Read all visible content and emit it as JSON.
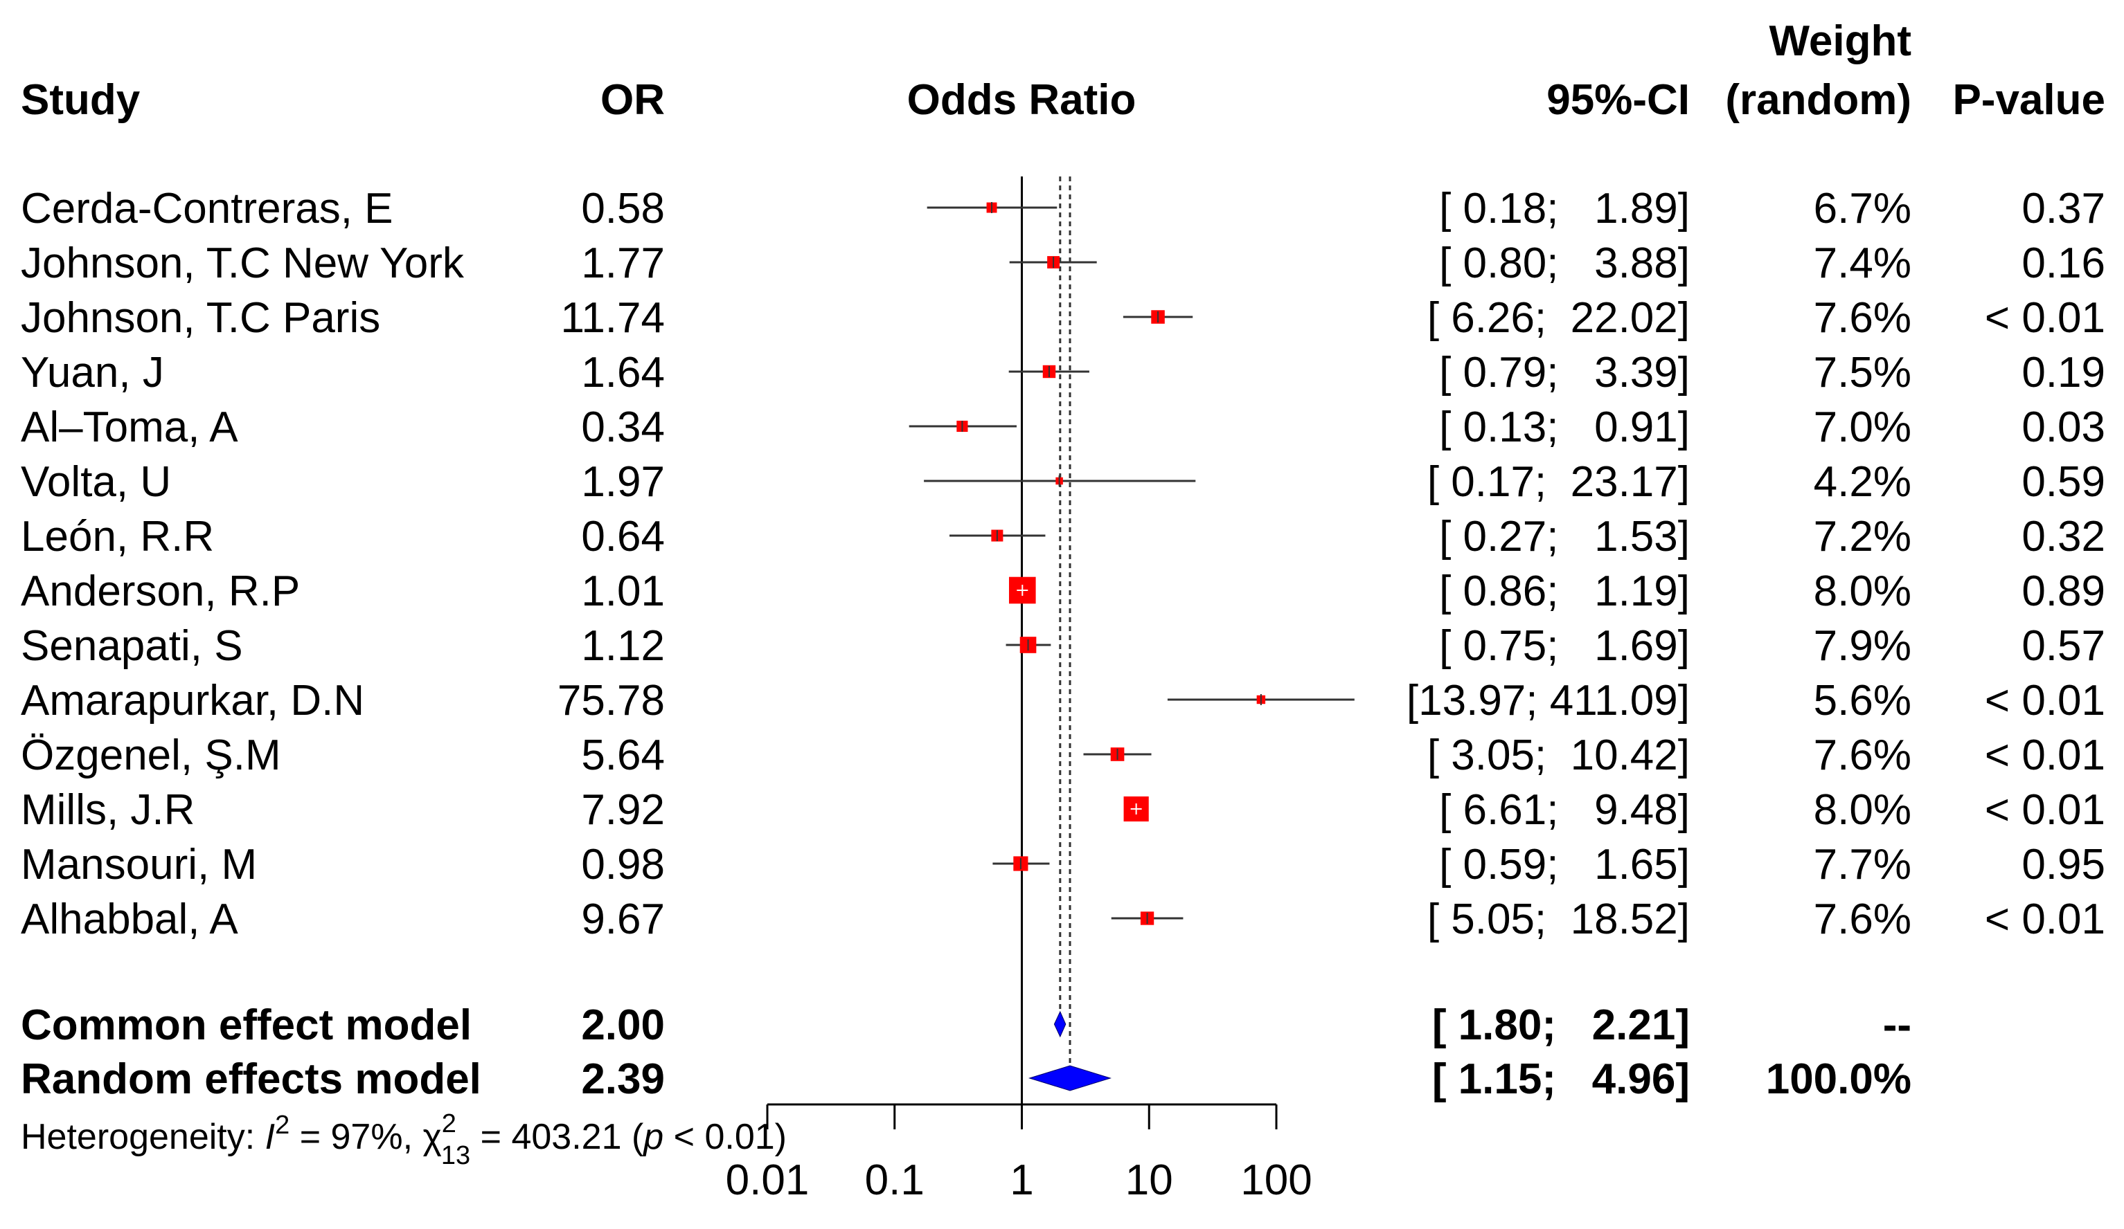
{
  "chart_data": {
    "type": "forest",
    "title": "",
    "xlabel": "",
    "ylabel": "",
    "x_scale": "log",
    "xlim": [
      0.01,
      100
    ],
    "columns": {
      "study": "Study",
      "or": "OR",
      "plot": "Odds Ratio",
      "ci": "95%-CI",
      "weight_line1": "Weight",
      "weight_line2": "(random)",
      "pvalue": "P-value"
    },
    "studies": [
      {
        "name": "Cerda-Contreras, E",
        "or": 0.58,
        "or_label": "0.58",
        "lower": 0.18,
        "upper": 1.89,
        "ci_label": "[ 0.18;   1.89]",
        "weight": 6.7,
        "weight_label": "6.7%",
        "p_label": "0.37"
      },
      {
        "name": "Johnson, T.C New York",
        "or": 1.77,
        "or_label": "1.77",
        "lower": 0.8,
        "upper": 3.88,
        "ci_label": "[ 0.80;   3.88]",
        "weight": 7.4,
        "weight_label": "7.4%",
        "p_label": "0.16"
      },
      {
        "name": "Johnson, T.C Paris",
        "or": 11.74,
        "or_label": "11.74",
        "lower": 6.26,
        "upper": 22.02,
        "ci_label": "[ 6.26;  22.02]",
        "weight": 7.6,
        "weight_label": "7.6%",
        "p_label": "< 0.01"
      },
      {
        "name": "Yuan, J",
        "or": 1.64,
        "or_label": "1.64",
        "lower": 0.79,
        "upper": 3.39,
        "ci_label": "[ 0.79;   3.39]",
        "weight": 7.5,
        "weight_label": "7.5%",
        "p_label": "0.19"
      },
      {
        "name": "Al–Toma, A",
        "or": 0.34,
        "or_label": "0.34",
        "lower": 0.13,
        "upper": 0.91,
        "ci_label": "[ 0.13;   0.91]",
        "weight": 7.0,
        "weight_label": "7.0%",
        "p_label": "0.03"
      },
      {
        "name": "Volta, U",
        "or": 1.97,
        "or_label": "1.97",
        "lower": 0.17,
        "upper": 23.17,
        "ci_label": "[ 0.17;  23.17]",
        "weight": 4.2,
        "weight_label": "4.2%",
        "p_label": "0.59"
      },
      {
        "name": "León, R.R",
        "or": 0.64,
        "or_label": "0.64",
        "lower": 0.27,
        "upper": 1.53,
        "ci_label": "[ 0.27;   1.53]",
        "weight": 7.2,
        "weight_label": "7.2%",
        "p_label": "0.32"
      },
      {
        "name": "Anderson, R.P",
        "or": 1.01,
        "or_label": "1.01",
        "lower": 0.86,
        "upper": 1.19,
        "ci_label": "[ 0.86;   1.19]",
        "weight": 8.0,
        "weight_label": "8.0%",
        "p_label": "0.89"
      },
      {
        "name": "Senapati, S",
        "or": 1.12,
        "or_label": "1.12",
        "lower": 0.75,
        "upper": 1.69,
        "ci_label": "[ 0.75;   1.69]",
        "weight": 7.9,
        "weight_label": "7.9%",
        "p_label": "0.57"
      },
      {
        "name": "Amarapurkar, D.N",
        "or": 75.78,
        "or_label": "75.78",
        "lower": 13.97,
        "upper": 411.09,
        "ci_label": "[13.97; 411.09]",
        "weight": 5.6,
        "weight_label": "5.6%",
        "p_label": "< 0.01"
      },
      {
        "name": "Özgenel, Ş.M",
        "or": 5.64,
        "or_label": "5.64",
        "lower": 3.05,
        "upper": 10.42,
        "ci_label": "[ 3.05;  10.42]",
        "weight": 7.6,
        "weight_label": "7.6%",
        "p_label": "< 0.01"
      },
      {
        "name": "Mills, J.R",
        "or": 7.92,
        "or_label": "7.92",
        "lower": 6.61,
        "upper": 9.48,
        "ci_label": "[ 6.61;   9.48]",
        "weight": 8.0,
        "weight_label": "8.0%",
        "p_label": "< 0.01"
      },
      {
        "name": "Mansouri, M",
        "or": 0.98,
        "or_label": "0.98",
        "lower": 0.59,
        "upper": 1.65,
        "ci_label": "[ 0.59;   1.65]",
        "weight": 7.7,
        "weight_label": "7.7%",
        "p_label": "0.95"
      },
      {
        "name": "Alhabbal, A",
        "or": 9.67,
        "or_label": "9.67",
        "lower": 5.05,
        "upper": 18.52,
        "ci_label": "[ 5.05;  18.52]",
        "weight": 7.6,
        "weight_label": "7.6%",
        "p_label": "< 0.01"
      }
    ],
    "summaries": [
      {
        "name": "Common effect model",
        "or": 2.0,
        "or_label": "2.00",
        "lower": 1.8,
        "upper": 2.21,
        "ci_label": "[ 1.80;   2.21]",
        "weight_label": "--",
        "p_label": ""
      },
      {
        "name": "Random effects model",
        "or": 2.39,
        "or_label": "2.39",
        "lower": 1.15,
        "upper": 4.96,
        "ci_label": "[ 1.15;   4.96]",
        "weight_label": "100.0%",
        "p_label": ""
      }
    ],
    "heterogeneity": {
      "prefix": "Heterogeneity: ",
      "i2_symbol": "I",
      "i2_sup": "2",
      "i2_value": " = 97%, ",
      "chi_symbol": "χ",
      "chi_sup": "2",
      "chi_sub": "13",
      "chi_value": " = 403.21 (",
      "p_symbol": "p",
      "p_value": " < 0.01)"
    },
    "x_ticks": [
      {
        "value": 0.01,
        "label": "0.01"
      },
      {
        "value": 0.1,
        "label": "0.1"
      },
      {
        "value": 1,
        "label": "1"
      },
      {
        "value": 10,
        "label": "10"
      },
      {
        "value": 100,
        "label": "100"
      }
    ],
    "reference_line": 1,
    "colors": {
      "box": "#ff0000",
      "diamond": "#0000ff",
      "line": "#000000",
      "text": "#111111"
    }
  }
}
